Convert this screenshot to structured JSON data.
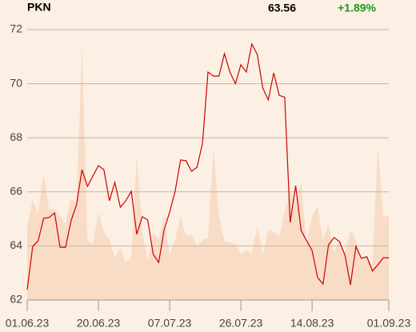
{
  "header": {
    "symbol": "PKN",
    "price": "63.56",
    "change": "+1.89%"
  },
  "chart_data": {
    "type": "line",
    "categories": [
      "01.06.23",
      null,
      null,
      null,
      null,
      null,
      null,
      null,
      null,
      null,
      null,
      null,
      null,
      "20.06.23",
      null,
      null,
      null,
      null,
      null,
      null,
      null,
      null,
      null,
      null,
      null,
      null,
      "07.07.23",
      null,
      null,
      null,
      null,
      null,
      null,
      null,
      null,
      null,
      null,
      null,
      null,
      "26.07.23",
      null,
      null,
      null,
      null,
      null,
      null,
      null,
      null,
      null,
      null,
      null,
      null,
      "14.08.23",
      null,
      null,
      null,
      null,
      null,
      null,
      null,
      null,
      null,
      null,
      null,
      null,
      null,
      "01.09.23"
    ],
    "series": [
      {
        "color": "#cc0000",
        "values": [
          62.38,
          63.98,
          64.19,
          65.02,
          65.05,
          65.22,
          63.95,
          63.95,
          64.93,
          65.52,
          66.82,
          66.2,
          66.59,
          66.97,
          66.82,
          65.67,
          66.35,
          65.43,
          65.67,
          66.02,
          64.43,
          65.08,
          64.96,
          63.69,
          63.39,
          64.6,
          65.25,
          66.02,
          67.18,
          67.15,
          66.76,
          66.91,
          67.8,
          70.43,
          70.28,
          70.28,
          71.11,
          70.43,
          70.0,
          70.7,
          70.43,
          71.47,
          71.08,
          69.84,
          69.4,
          70.4,
          69.57,
          69.5,
          64.87,
          66.23,
          64.57,
          64.19,
          63.83,
          62.83,
          62.59,
          64.04,
          64.31,
          64.16,
          63.66,
          62.56,
          63.98,
          63.54,
          63.6,
          63.07,
          63.3,
          63.56,
          63.56
        ]
      },
      {
        "color": "#f8dcc6",
        "axis": "y2",
        "values": [
          27.5,
          37,
          31.7,
          47,
          33.4,
          33.4,
          31,
          28,
          37.6,
          35.5,
          93.8,
          22.2,
          20.7,
          32.5,
          25.1,
          22.2,
          15.7,
          19.2,
          13.9,
          15.7,
          53.8,
          25.1,
          14.8,
          25.1,
          22.2,
          31,
          16.3,
          22.2,
          31,
          23.7,
          24.3,
          19.8,
          22.2,
          23.1,
          56.2,
          31,
          21.6,
          21.3,
          20.7,
          16.9,
          18.3,
          17.5,
          27.2,
          16.9,
          26,
          25.1,
          23.4,
          32.5,
          39.9,
          37,
          42.9,
          20.7,
          31,
          34.6,
          22.2,
          28.1,
          17.8,
          22.2,
          16.9,
          26,
          22.2,
          15.7,
          15.7,
          13.3,
          56.8,
          31,
          31
        ]
      }
    ],
    "ylim": [
      62,
      72
    ],
    "yticks": [
      62,
      64,
      66,
      68,
      70,
      72
    ],
    "y2lim": [
      0,
      100
    ],
    "grid": true
  }
}
